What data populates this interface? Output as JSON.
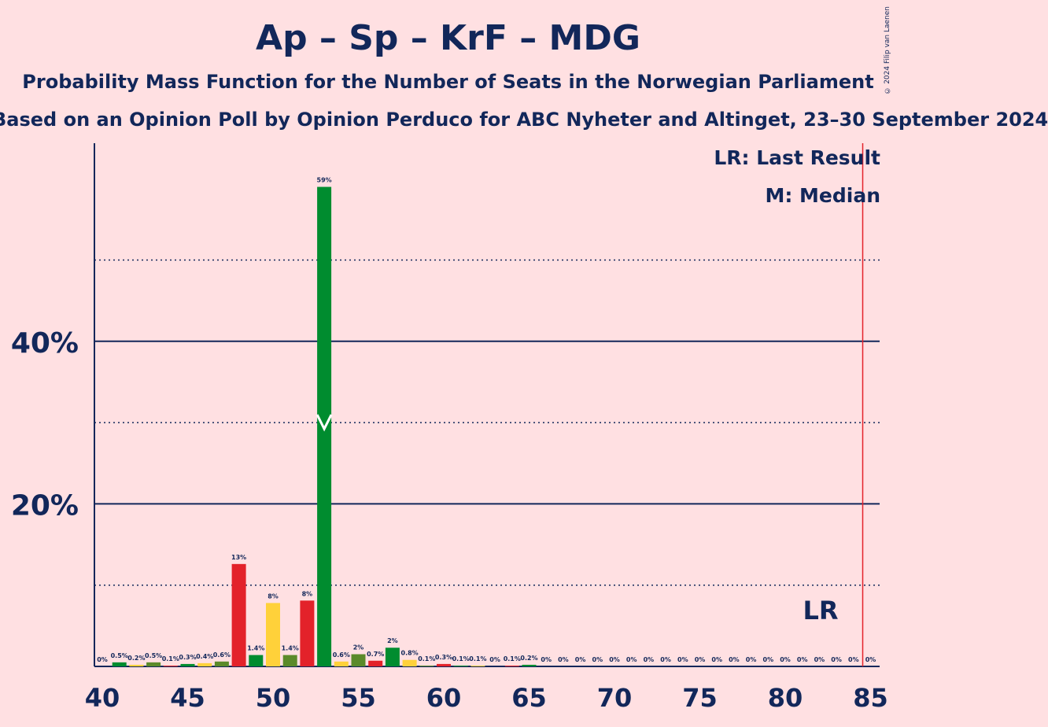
{
  "header": {
    "title": "Ap – Sp – KrF – MDG",
    "subtitle": "Probability Mass Function for the Number of Seats in the Norwegian Parliament",
    "subsubtitle": "Based on an Opinion Poll by Opinion Perduco for ABC Nyheter and Altinget, 23–30 September 2024",
    "copyright": "© 2024 Filip van Laenen"
  },
  "legend": {
    "last_result": "LR: Last Result",
    "median": "M: Median"
  },
  "colors": {
    "background": "#ffe0e2",
    "text": "#12275a",
    "ap": "#e3222a",
    "sp": "#008c2f",
    "krf": "#ffd13a",
    "mdg": "#5b8a2a",
    "last_result_line": "#e3222a"
  },
  "chart_data": {
    "type": "bar",
    "xlim": [
      40,
      85
    ],
    "ylim": [
      0,
      64
    ],
    "ylabel": "",
    "xlabel": "",
    "x_ticks": [
      40,
      45,
      50,
      55,
      60,
      65,
      70,
      75,
      80,
      85
    ],
    "y_ticks_major": [
      20,
      40
    ],
    "y_ticks_minor": [
      10,
      30,
      50
    ],
    "y_tick_labels": [
      "20%",
      "40%"
    ],
    "median": 53,
    "median_marker": "M",
    "last_result": 85,
    "last_result_label": "LR",
    "bars": [
      {
        "x": 40,
        "value": 0,
        "label": "0%",
        "color": "#e3222a"
      },
      {
        "x": 41,
        "value": 0.5,
        "label": "0.5%",
        "color": "#008c2f"
      },
      {
        "x": 42,
        "value": 0.2,
        "label": "0.2%",
        "color": "#ffd13a"
      },
      {
        "x": 43,
        "value": 0.5,
        "label": "0.5%",
        "color": "#5b8a2a"
      },
      {
        "x": 44,
        "value": 0.1,
        "label": "0.1%",
        "color": "#e3222a"
      },
      {
        "x": 45,
        "value": 0.3,
        "label": "0.3%",
        "color": "#008c2f"
      },
      {
        "x": 46,
        "value": 0.4,
        "label": "0.4%",
        "color": "#ffd13a"
      },
      {
        "x": 47,
        "value": 0.6,
        "label": "0.6%",
        "color": "#5b8a2a"
      },
      {
        "x": 48,
        "value": 12.6,
        "label": "13%",
        "color": "#e3222a"
      },
      {
        "x": 49,
        "value": 1.4,
        "label": "1.4%",
        "color": "#008c2f"
      },
      {
        "x": 50,
        "value": 7.8,
        "label": "8%",
        "color": "#ffd13a"
      },
      {
        "x": 51,
        "value": 1.4,
        "label": "1.4%",
        "color": "#5b8a2a"
      },
      {
        "x": 52,
        "value": 8.1,
        "label": "8%",
        "color": "#e3222a"
      },
      {
        "x": 53,
        "value": 59,
        "label": "59%",
        "color": "#008c2f"
      },
      {
        "x": 54,
        "value": 0.6,
        "label": "0.6%",
        "color": "#ffd13a"
      },
      {
        "x": 55,
        "value": 1.5,
        "label": "2%",
        "color": "#5b8a2a"
      },
      {
        "x": 56,
        "value": 0.7,
        "label": "0.7%",
        "color": "#e3222a"
      },
      {
        "x": 57,
        "value": 2.3,
        "label": "2%",
        "color": "#008c2f"
      },
      {
        "x": 58,
        "value": 0.8,
        "label": "0.8%",
        "color": "#ffd13a"
      },
      {
        "x": 59,
        "value": 0.1,
        "label": "0.1%",
        "color": "#5b8a2a"
      },
      {
        "x": 60,
        "value": 0.3,
        "label": "0.3%",
        "color": "#e3222a"
      },
      {
        "x": 61,
        "value": 0.1,
        "label": "0.1%",
        "color": "#008c2f"
      },
      {
        "x": 62,
        "value": 0.1,
        "label": "0.1%",
        "color": "#ffd13a"
      },
      {
        "x": 63,
        "value": 0,
        "label": "0%",
        "color": "#5b8a2a"
      },
      {
        "x": 64,
        "value": 0.1,
        "label": "0.1%",
        "color": "#e3222a"
      },
      {
        "x": 65,
        "value": 0.2,
        "label": "0.2%",
        "color": "#008c2f"
      },
      {
        "x": 66,
        "value": 0,
        "label": "0%",
        "color": "#ffd13a"
      },
      {
        "x": 67,
        "value": 0,
        "label": "0%",
        "color": "#5b8a2a"
      },
      {
        "x": 68,
        "value": 0,
        "label": "0%",
        "color": "#e3222a"
      },
      {
        "x": 69,
        "value": 0,
        "label": "0%",
        "color": "#008c2f"
      },
      {
        "x": 70,
        "value": 0,
        "label": "0%",
        "color": "#ffd13a"
      },
      {
        "x": 71,
        "value": 0,
        "label": "0%",
        "color": "#5b8a2a"
      },
      {
        "x": 72,
        "value": 0,
        "label": "0%",
        "color": "#e3222a"
      },
      {
        "x": 73,
        "value": 0,
        "label": "0%",
        "color": "#008c2f"
      },
      {
        "x": 74,
        "value": 0,
        "label": "0%",
        "color": "#ffd13a"
      },
      {
        "x": 75,
        "value": 0,
        "label": "0%",
        "color": "#5b8a2a"
      },
      {
        "x": 76,
        "value": 0,
        "label": "0%",
        "color": "#e3222a"
      },
      {
        "x": 77,
        "value": 0,
        "label": "0%",
        "color": "#008c2f"
      },
      {
        "x": 78,
        "value": 0,
        "label": "0%",
        "color": "#ffd13a"
      },
      {
        "x": 79,
        "value": 0,
        "label": "0%",
        "color": "#5b8a2a"
      },
      {
        "x": 80,
        "value": 0,
        "label": "0%",
        "color": "#e3222a"
      },
      {
        "x": 81,
        "value": 0,
        "label": "0%",
        "color": "#008c2f"
      },
      {
        "x": 82,
        "value": 0,
        "label": "0%",
        "color": "#ffd13a"
      },
      {
        "x": 83,
        "value": 0,
        "label": "0%",
        "color": "#5b8a2a"
      },
      {
        "x": 84,
        "value": 0,
        "label": "0%",
        "color": "#e3222a"
      },
      {
        "x": 85,
        "value": 0,
        "label": "0%",
        "color": "#008c2f"
      }
    ]
  }
}
